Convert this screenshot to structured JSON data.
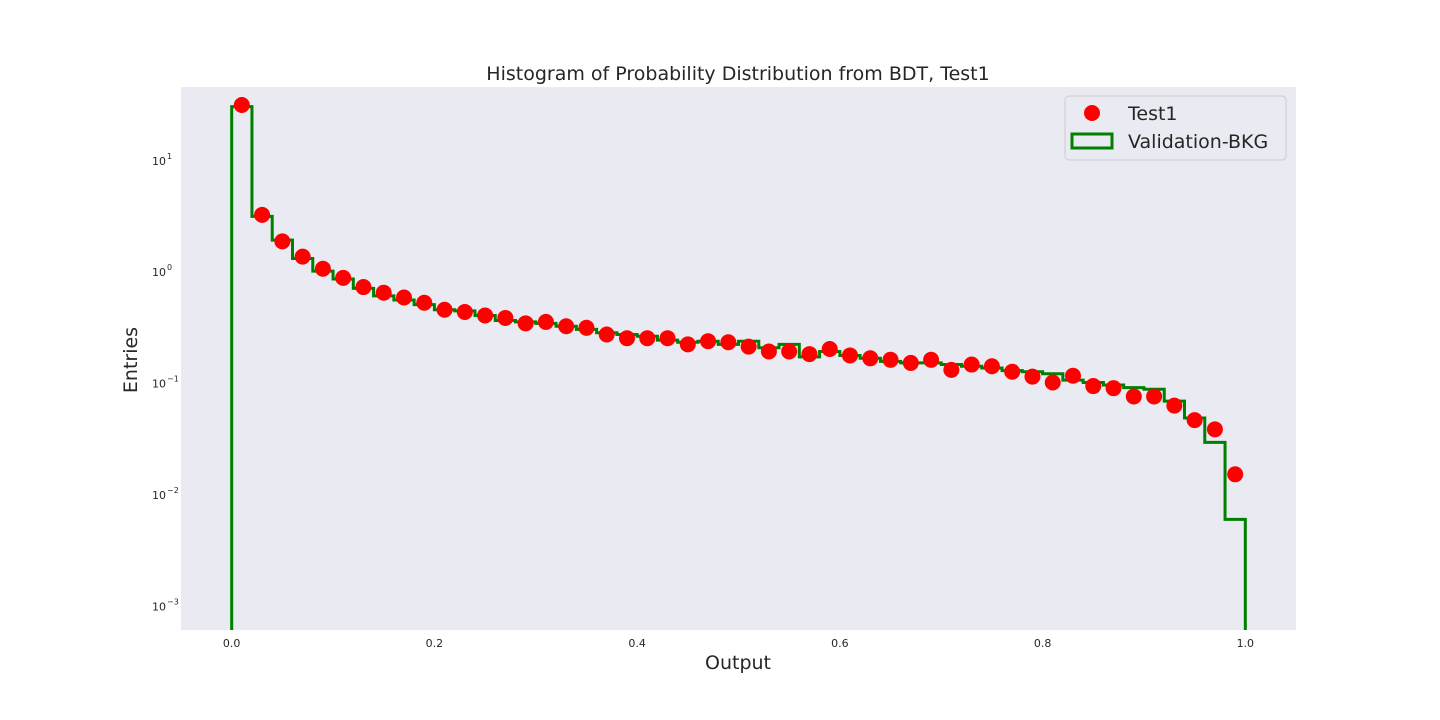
{
  "chart_data": {
    "type": "step-histogram-with-scatter",
    "title": "Histogram of Probability Distribution from BDT, Test1",
    "xlabel": "Output",
    "ylabel": "Entries",
    "xlim": [
      -0.05,
      1.05
    ],
    "ylim": [
      0.0006,
      45
    ],
    "yscale": "log",
    "grid": false,
    "legend_position": "top-right",
    "x_ticks": [
      0.0,
      0.2,
      0.4,
      0.6,
      0.8,
      1.0
    ],
    "x_tick_labels": [
      "0.0",
      "0.2",
      "0.4",
      "0.6",
      "0.8",
      "1.0"
    ],
    "y_ticks": [
      0.001,
      0.01,
      0.1,
      1,
      10
    ],
    "y_tick_labels": [
      {
        "base": "10",
        "exp": "−3"
      },
      {
        "base": "10",
        "exp": "−2"
      },
      {
        "base": "10",
        "exp": "−1"
      },
      {
        "base": "10",
        "exp": "0"
      },
      {
        "base": "10",
        "exp": "1"
      }
    ],
    "colors": {
      "plot_background": "#eaeaf2",
      "points": "#ff0000",
      "step": "#008000"
    },
    "series": [
      {
        "name": "Test1",
        "kind": "points",
        "x": [
          0.01,
          0.03,
          0.05,
          0.07,
          0.09,
          0.11,
          0.13,
          0.15,
          0.17,
          0.19,
          0.21,
          0.23,
          0.25,
          0.27,
          0.29,
          0.31,
          0.33,
          0.35,
          0.37,
          0.39,
          0.41,
          0.43,
          0.45,
          0.47,
          0.49,
          0.51,
          0.53,
          0.55,
          0.57,
          0.59,
          0.61,
          0.63,
          0.65,
          0.67,
          0.69,
          0.71,
          0.73,
          0.75,
          0.77,
          0.79,
          0.81,
          0.83,
          0.85,
          0.87,
          0.89,
          0.91,
          0.93,
          0.95,
          0.97,
          0.99
        ],
        "y": [
          31,
          3.2,
          1.85,
          1.35,
          1.05,
          0.87,
          0.72,
          0.64,
          0.58,
          0.52,
          0.45,
          0.43,
          0.4,
          0.38,
          0.34,
          0.35,
          0.32,
          0.31,
          0.27,
          0.25,
          0.25,
          0.25,
          0.22,
          0.235,
          0.23,
          0.21,
          0.19,
          0.19,
          0.18,
          0.2,
          0.175,
          0.165,
          0.16,
          0.15,
          0.16,
          0.13,
          0.145,
          0.14,
          0.125,
          0.113,
          0.1,
          0.115,
          0.093,
          0.089,
          0.075,
          0.075,
          0.062,
          0.046,
          0.038,
          0.015
        ]
      },
      {
        "name": "Validation-BKG",
        "kind": "step",
        "bin_edges": [
          0.0,
          0.02,
          0.04,
          0.06,
          0.08,
          0.1,
          0.12,
          0.14,
          0.16,
          0.18,
          0.2,
          0.22,
          0.24,
          0.26,
          0.28,
          0.3,
          0.32,
          0.34,
          0.36,
          0.38,
          0.4,
          0.42,
          0.44,
          0.46,
          0.48,
          0.5,
          0.52,
          0.54,
          0.56,
          0.58,
          0.6,
          0.62,
          0.64,
          0.66,
          0.68,
          0.7,
          0.72,
          0.74,
          0.76,
          0.78,
          0.8,
          0.82,
          0.84,
          0.86,
          0.88,
          0.9,
          0.92,
          0.94,
          0.96,
          0.98,
          1.0
        ],
        "counts": [
          30,
          3.1,
          1.9,
          1.3,
          1.0,
          0.85,
          0.7,
          0.6,
          0.55,
          0.5,
          0.45,
          0.44,
          0.4,
          0.36,
          0.35,
          0.34,
          0.32,
          0.3,
          0.28,
          0.27,
          0.26,
          0.24,
          0.23,
          0.235,
          0.22,
          0.235,
          0.205,
          0.22,
          0.17,
          0.19,
          0.175,
          0.165,
          0.155,
          0.15,
          0.15,
          0.145,
          0.14,
          0.135,
          0.128,
          0.125,
          0.12,
          0.105,
          0.1,
          0.095,
          0.09,
          0.087,
          0.068,
          0.048,
          0.029,
          0.0059
        ]
      }
    ]
  }
}
